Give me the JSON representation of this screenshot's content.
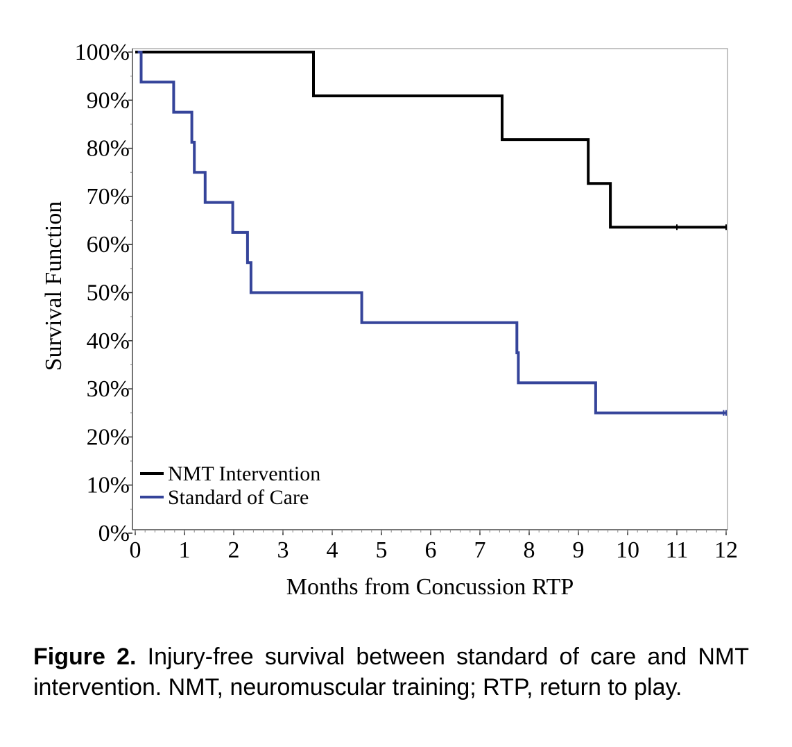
{
  "chart_data": {
    "type": "line",
    "step": true,
    "title": "",
    "xlabel": "Months from Concussion RTP",
    "ylabel": "Survival Function",
    "xlim": [
      0,
      12
    ],
    "ylim": [
      0,
      100
    ],
    "x_ticks": [
      0,
      1,
      2,
      3,
      4,
      5,
      6,
      7,
      8,
      9,
      10,
      11,
      12
    ],
    "x_tick_labels": [
      "0",
      "1",
      "2",
      "3",
      "4",
      "5",
      "6",
      "7",
      "8",
      "9",
      "10",
      "11",
      "12"
    ],
    "y_ticks": [
      0,
      10,
      20,
      30,
      40,
      50,
      60,
      70,
      80,
      90,
      100
    ],
    "y_tick_labels": [
      "0%",
      "10%",
      "20%",
      "30%",
      "40%",
      "50%",
      "60%",
      "70%",
      "80%",
      "90%",
      "100%"
    ],
    "legend_position": "bottom-left",
    "series": [
      {
        "name": "NMT Intervention",
        "color": "#000000",
        "start": [
          0,
          100
        ],
        "steps": [
          {
            "x": 3.62,
            "y": 90.9
          },
          {
            "x": 7.45,
            "y": 81.8
          },
          {
            "x": 9.2,
            "y": 72.7
          },
          {
            "x": 9.65,
            "y": 63.6
          }
        ],
        "end_x": 12,
        "censored_x": [
          11.0,
          12.0
        ]
      },
      {
        "name": "Standard of Care",
        "color": "#35449a",
        "start": [
          0.05,
          100
        ],
        "steps": [
          {
            "x": 0.12,
            "y": 93.75
          },
          {
            "x": 0.78,
            "y": 87.5
          },
          {
            "x": 1.15,
            "y": 81.25
          },
          {
            "x": 1.2,
            "y": 75.0
          },
          {
            "x": 1.42,
            "y": 68.75
          },
          {
            "x": 1.98,
            "y": 62.5
          },
          {
            "x": 2.28,
            "y": 56.25
          },
          {
            "x": 2.35,
            "y": 50.0
          },
          {
            "x": 4.6,
            "y": 43.75
          },
          {
            "x": 7.75,
            "y": 37.5
          },
          {
            "x": 7.78,
            "y": 31.25
          },
          {
            "x": 9.35,
            "y": 25.0
          }
        ],
        "end_x": 12,
        "censored_x": [
          11.95,
          12.0
        ]
      }
    ]
  },
  "caption": {
    "label": "Figure 2.",
    "text": "Injury-free survival between standard of care and NMT intervention. NMT, neuromuscular training; RTP, return to play."
  }
}
